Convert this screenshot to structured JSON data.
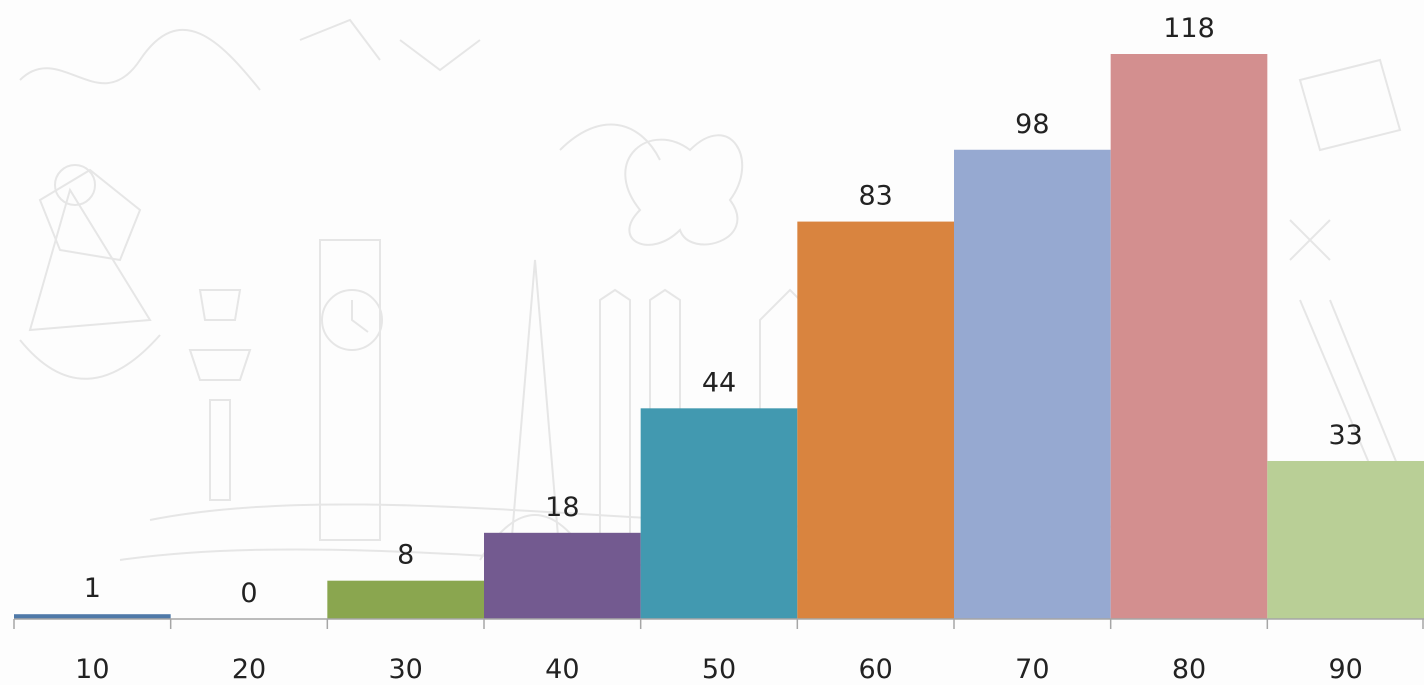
{
  "chart_data": {
    "type": "bar",
    "categories": [
      "10",
      "20",
      "30",
      "40",
      "50",
      "60",
      "70",
      "80",
      "90"
    ],
    "values": [
      1,
      0,
      8,
      18,
      44,
      83,
      98,
      118,
      33
    ],
    "title": "",
    "xlabel": "",
    "ylabel": "",
    "ylim": [
      0,
      118
    ],
    "grid": false,
    "legend": "none",
    "colors": [
      "#4f79a8",
      "#4f79a8",
      "#8aa64f",
      "#735a90",
      "#4299b0",
      "#d9843f",
      "#96a9d1",
      "#d38f8f",
      "#b9cf96"
    ]
  }
}
